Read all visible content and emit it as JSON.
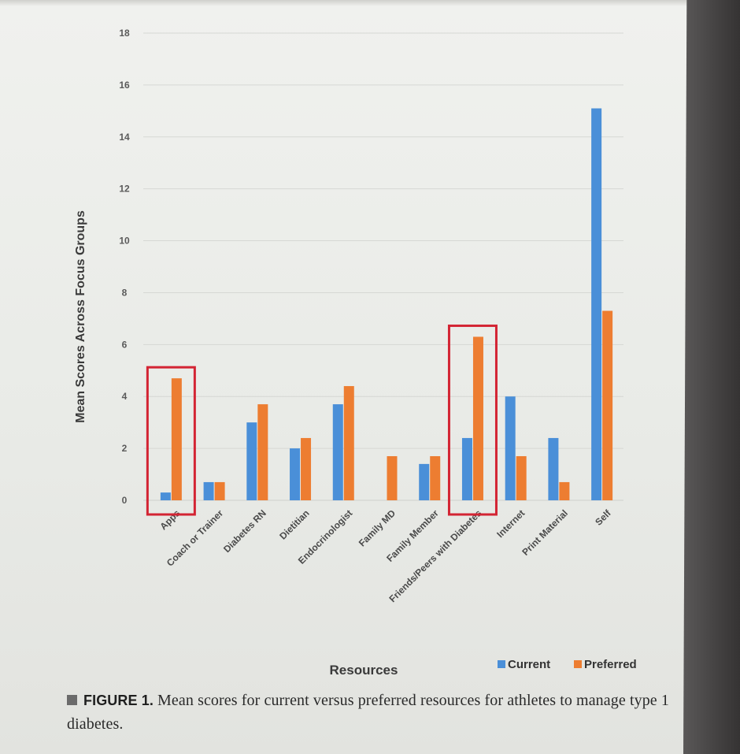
{
  "chart_data": {
    "type": "bar",
    "title": "",
    "xlabel": "Resources",
    "ylabel": "Mean Scores Across Focus Groups",
    "ylim": [
      0,
      18
    ],
    "yticks": [
      0,
      2,
      4,
      6,
      8,
      10,
      12,
      14,
      16,
      18
    ],
    "grid": true,
    "legend_position": "bottom-right",
    "categories": [
      "Apps",
      "Coach or Trainer",
      "Diabetes RN",
      "Dietitian",
      "Endocrinologist",
      "Family MD",
      "Family Member",
      "Friends/Peers with Diabetes",
      "Internet",
      "Print Material",
      "Self"
    ],
    "series": [
      {
        "name": "Current",
        "color": "#4a8fd8",
        "values": [
          0.3,
          0.7,
          3.0,
          2.0,
          3.7,
          0,
          1.4,
          2.4,
          4.0,
          2.4,
          15.1
        ]
      },
      {
        "name": "Preferred",
        "color": "#ed7d31",
        "values": [
          4.7,
          0.7,
          3.7,
          2.4,
          4.4,
          1.7,
          1.7,
          6.3,
          1.7,
          0.7,
          7.3
        ]
      }
    ],
    "highlighted_categories": [
      "Apps",
      "Friends/Peers with Diabetes"
    ],
    "highlight_color": "#d32433"
  },
  "caption": {
    "figure_label": "FIGURE 1.",
    "text": "Mean scores for current versus preferred resources for athletes to manage type 1 diabetes."
  }
}
